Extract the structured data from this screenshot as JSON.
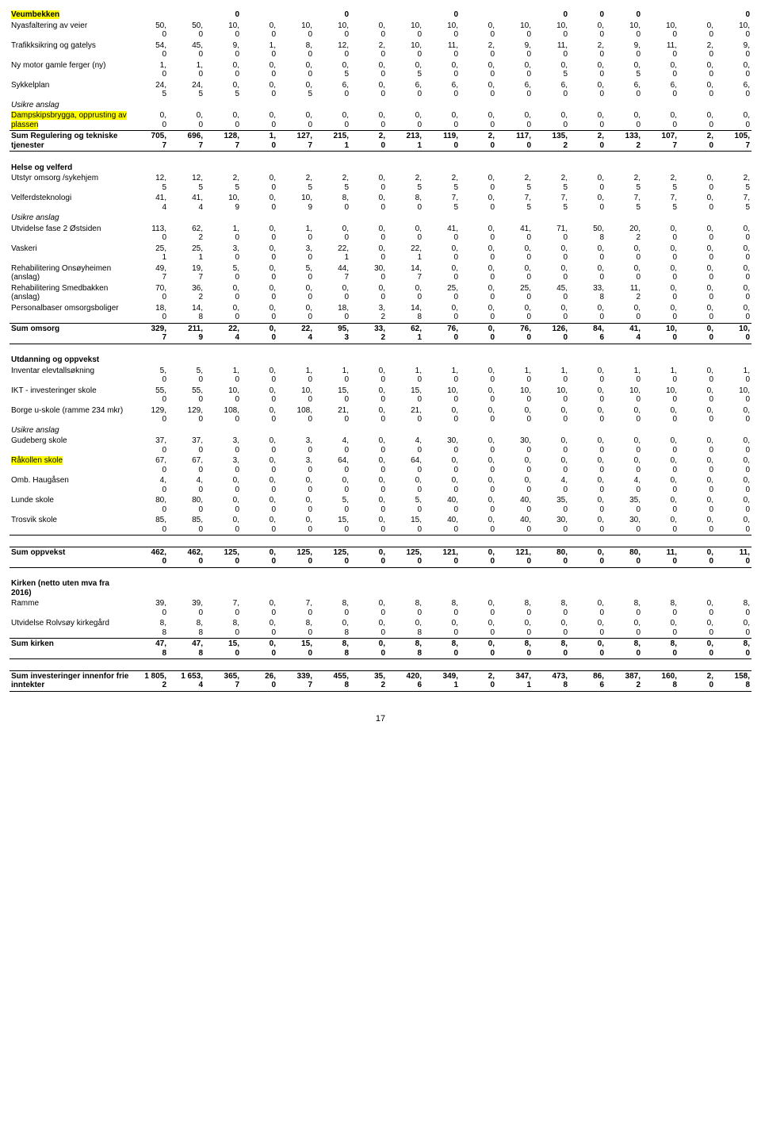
{
  "page_number": "17",
  "highlight_color": "#ffff00",
  "rows": [
    {
      "label": "Veumbekken",
      "bold": true,
      "highlight": "label",
      "c": [
        "",
        "",
        "0",
        "",
        "",
        "0",
        "",
        "",
        "0",
        "",
        "",
        "0",
        "0",
        "0",
        "",
        "",
        "0"
      ]
    },
    {
      "label": "Nyasfaltering av veier",
      "c": [
        "50,0",
        "50,0",
        "10,0",
        "0,0",
        "10,0",
        "10,0",
        "0,0",
        "10,0",
        "10,0",
        "0,0",
        "10,0",
        "10,0",
        "0,0",
        "10,0",
        "10,0",
        "0,0",
        "10,0"
      ]
    },
    {
      "label": "Trafikksikring og gatelys",
      "c": [
        "54,0",
        "45,0",
        "9,0",
        "1,0",
        "8,0",
        "12,0",
        "2,0",
        "10,0",
        "11,0",
        "2,0",
        "9,0",
        "11,0",
        "2,0",
        "9,0",
        "11,0",
        "2,0",
        "9,0"
      ]
    },
    {
      "label": "Ny motor gamle ferger (ny)",
      "c": [
        "1,0",
        "1,0",
        "0,0",
        "0,0",
        "0,0",
        "0,5",
        "0,0",
        "0,5",
        "0,0",
        "0,0",
        "0,0",
        "0,5",
        "0,0",
        "0,5",
        "0,0",
        "0,0",
        "0,0"
      ]
    },
    {
      "label": "Sykkelplan",
      "c": [
        "24,5",
        "24,5",
        "0,5",
        "0,0",
        "0,5",
        "6,0",
        "0,0",
        "6,0",
        "6,0",
        "0,0",
        "6,0",
        "6,0",
        "0,0",
        "6,0",
        "6,0",
        "0,0",
        "6,0"
      ]
    },
    {
      "label": "Usikre anslag",
      "italic": true,
      "c": [
        "",
        "",
        "",
        "",
        "",
        "",
        "",
        "",
        "",
        "",
        "",
        "",
        "",
        "",
        "",
        "",
        ""
      ]
    },
    {
      "label": "Dampskipsbrygga, opprusting av plassen",
      "highlight": "label",
      "sep": true,
      "c": [
        "0,0",
        "0,0",
        "0,0",
        "0,0",
        "0,0",
        "0,0",
        "0,0",
        "0,0",
        "0,0",
        "0,0",
        "0,0",
        "0,0",
        "0,0",
        "0,0",
        "0,0",
        "0,0",
        "0,0"
      ]
    },
    {
      "label": "Sum Regulering og tekniske tjenester",
      "bold": true,
      "sep": true,
      "c": [
        "705,7",
        "696,7",
        "128,7",
        "1,0",
        "127,7",
        "215,1",
        "2,0",
        "213,1",
        "119,0",
        "2,0",
        "117,0",
        "135,2",
        "2,0",
        "133,2",
        "107,7",
        "2,0",
        "105,7"
      ]
    },
    {
      "spacer": true
    },
    {
      "label": "Helse og velferd",
      "bold": true,
      "c": [
        "",
        "",
        "",
        "",
        "",
        "",
        "",
        "",
        "",
        "",
        "",
        "",
        "",
        "",
        "",
        "",
        ""
      ]
    },
    {
      "label": "Utstyr omsorg /sykehjem",
      "c": [
        "12,5",
        "12,5",
        "2,5",
        "0,0",
        "2,5",
        "2,5",
        "0,0",
        "2,5",
        "2,5",
        "0,0",
        "2,5",
        "2,5",
        "0,0",
        "2,5",
        "2,5",
        "0,0",
        "2,5"
      ]
    },
    {
      "label": "Velferdsteknologi",
      "c": [
        "41,4",
        "41,4",
        "10,9",
        "0,0",
        "10,9",
        "8,0",
        "0,0",
        "8,0",
        "7,5",
        "0,0",
        "7,5",
        "7,5",
        "0,0",
        "7,5",
        "7,5",
        "0,0",
        "7,5"
      ]
    },
    {
      "label": "Usikre anslag",
      "italic": true,
      "c": [
        "",
        "",
        "",
        "",
        "",
        "",
        "",
        "",
        "",
        "",
        "",
        "",
        "",
        "",
        "",
        "",
        ""
      ]
    },
    {
      "label": "Utvidelse fase 2 Østsiden",
      "c": [
        "113,0",
        "62,2",
        "1,0",
        "0,0",
        "1,0",
        "0,0",
        "0,0",
        "0,0",
        "41,0",
        "0,0",
        "41,0",
        "71,0",
        "50,8",
        "20,2",
        "0,0",
        "0,0",
        "0,0"
      ]
    },
    {
      "label": "Vaskeri",
      "c": [
        "25,1",
        "25,1",
        "3,0",
        "0,0",
        "3,0",
        "22,1",
        "0,0",
        "22,1",
        "0,0",
        "0,0",
        "0,0",
        "0,0",
        "0,0",
        "0,0",
        "0,0",
        "0,0",
        "0,0"
      ]
    },
    {
      "label": "Rehabilitering Onsøyheimen (anslag)",
      "c": [
        "49,7",
        "19,7",
        "5,0",
        "0,0",
        "5,0",
        "44,7",
        "30,0",
        "14,7",
        "0,0",
        "0,0",
        "0,0",
        "0,0",
        "0,0",
        "0,0",
        "0,0",
        "0,0",
        "0,0"
      ]
    },
    {
      "label": "Rehabilitering Smedbakken (anslag)",
      "c": [
        "70,0",
        "36,2",
        "0,0",
        "0,0",
        "0,0",
        "0,0",
        "0,0",
        "0,0",
        "25,0",
        "0,0",
        "25,0",
        "45,0",
        "33,8",
        "11,2",
        "0,0",
        "0,0",
        "0,0"
      ]
    },
    {
      "label": "Personalbaser omsorgsboliger",
      "sep": true,
      "c": [
        "18,0",
        "14,8",
        "0,0",
        "0,0",
        "0,0",
        "18,0",
        "3,2",
        "14,8",
        "0,0",
        "0,0",
        "0,0",
        "0,0",
        "0,0",
        "0,0",
        "0,0",
        "0,0",
        "0,0"
      ]
    },
    {
      "label": "Sum omsorg",
      "bold": true,
      "sep": true,
      "c": [
        "329,7",
        "211,9",
        "22,4",
        "0,0",
        "22,4",
        "95,3",
        "33,2",
        "62,1",
        "76,0",
        "0,0",
        "76,0",
        "126,0",
        "84,6",
        "41,4",
        "10,0",
        "0,0",
        "10,0"
      ]
    },
    {
      "spacer": true
    },
    {
      "label": "Utdanning og oppvekst",
      "bold": true,
      "c": [
        "",
        "",
        "",
        "",
        "",
        "",
        "",
        "",
        "",
        "",
        "",
        "",
        "",
        "",
        "",
        "",
        ""
      ]
    },
    {
      "label": "Inventar elevtallsøkning",
      "c": [
        "5,0",
        "5,0",
        "1,0",
        "0,0",
        "1,0",
        "1,0",
        "0,0",
        "1,0",
        "1,0",
        "0,0",
        "1,0",
        "1,0",
        "0,0",
        "1,0",
        "1,0",
        "0,0",
        "1,0"
      ]
    },
    {
      "label": "IKT - investeringer skole",
      "c": [
        "55,0",
        "55,0",
        "10,0",
        "0,0",
        "10,0",
        "15,0",
        "0,0",
        "15,0",
        "10,0",
        "0,0",
        "10,0",
        "10,0",
        "0,0",
        "10,0",
        "10,0",
        "0,0",
        "10,0"
      ]
    },
    {
      "label": "Borge u-skole (ramme 234 mkr)",
      "c": [
        "129,0",
        "129,0",
        "108,0",
        "0,0",
        "108,0",
        "21,0",
        "0,0",
        "21,0",
        "0,0",
        "0,0",
        "0,0",
        "0,0",
        "0,0",
        "0,0",
        "0,0",
        "0,0",
        "0,0"
      ]
    },
    {
      "label": "Usikre anslag",
      "italic": true,
      "c": [
        "",
        "",
        "",
        "",
        "",
        "",
        "",
        "",
        "",
        "",
        "",
        "",
        "",
        "",
        "",
        "",
        ""
      ]
    },
    {
      "label": "Gudeberg skole",
      "c": [
        "37,0",
        "37,0",
        "3,0",
        "0,0",
        "3,0",
        "4,0",
        "0,0",
        "4,0",
        "30,0",
        "0,0",
        "30,0",
        "0,0",
        "0,0",
        "0,0",
        "0,0",
        "0,0",
        "0,0"
      ]
    },
    {
      "label": "Råkollen skole",
      "highlight": "label",
      "c": [
        "67,0",
        "67,0",
        "3,0",
        "0,0",
        "3,0",
        "64,0",
        "0,0",
        "64,0",
        "0,0",
        "0,0",
        "0,0",
        "0,0",
        "0,0",
        "0,0",
        "0,0",
        "0,0",
        "0,0"
      ]
    },
    {
      "label": "Omb. Haugåsen",
      "c": [
        "4,0",
        "4,0",
        "0,0",
        "0,0",
        "0,0",
        "0,0",
        "0,0",
        "0,0",
        "0,0",
        "0,0",
        "0,0",
        "4,0",
        "0,0",
        "4,0",
        "0,0",
        "0,0",
        "0,0"
      ]
    },
    {
      "label": "Lunde skole",
      "c": [
        "80,0",
        "80,0",
        "0,0",
        "0,0",
        "0,0",
        "5,0",
        "0,0",
        "5,0",
        "40,0",
        "0,0",
        "40,0",
        "35,0",
        "0,0",
        "35,0",
        "0,0",
        "0,0",
        "0,0"
      ]
    },
    {
      "label": "Trosvik skole",
      "sep": true,
      "c": [
        "85,0",
        "85,0",
        "0,0",
        "0,0",
        "0,0",
        "15,0",
        "0,0",
        "15,0",
        "40,0",
        "0,0",
        "40,0",
        "30,0",
        "0,0",
        "30,0",
        "0,0",
        "0,0",
        "0,0"
      ]
    },
    {
      "spacer": true
    },
    {
      "label": "Sum oppvekst",
      "bold": true,
      "sepheavy": true,
      "septop": true,
      "c": [
        "462,0",
        "462,0",
        "125,0",
        "0,0",
        "125,0",
        "125,0",
        "0,0",
        "125,0",
        "121,0",
        "0,0",
        "121,0",
        "80,0",
        "0,0",
        "80,0",
        "11,0",
        "0,0",
        "11,0"
      ]
    },
    {
      "spacer": true
    },
    {
      "label": "Kirken  (netto uten mva fra 2016)",
      "bold": true,
      "c": [
        "",
        "",
        "",
        "",
        "",
        "",
        "",
        "",
        "",
        "",
        "",
        "",
        "",
        "",
        "",
        "",
        ""
      ]
    },
    {
      "label": "Ramme",
      "c": [
        "39,0",
        "39,0",
        "7,0",
        "0,0",
        "7,0",
        "8,0",
        "0,0",
        "8,0",
        "8,0",
        "0,0",
        "8,0",
        "8,0",
        "0,0",
        "8,0",
        "8,0",
        "0,0",
        "8,0"
      ]
    },
    {
      "label": "Utvidelse Rolvsøy kirkegård",
      "sep": true,
      "c": [
        "8,8",
        "8,8",
        "8,0",
        "0,0",
        "8,0",
        "0,8",
        "0,0",
        "0,8",
        "0,0",
        "0,0",
        "0,0",
        "0,0",
        "0,0",
        "0,0",
        "0,0",
        "0,0",
        "0,0"
      ]
    },
    {
      "label": "Sum kirken",
      "bold": true,
      "sepheavy": true,
      "c": [
        "47,8",
        "47,8",
        "15,0",
        "0,0",
        "15,0",
        "8,8",
        "0,0",
        "8,8",
        "8,0",
        "0,0",
        "8,0",
        "8,0",
        "0,0",
        "8,0",
        "8,0",
        "0,0",
        "8,0"
      ]
    },
    {
      "spacer": true
    },
    {
      "label": "Sum investeringer innenfor frie inntekter",
      "bold": true,
      "septop": true,
      "sepheavy": true,
      "c": [
        "1 805,2",
        "1 653,4",
        "365,7",
        "26,0",
        "339,7",
        "455,8",
        "35,2",
        "420,6",
        "349,1",
        "2,0",
        "347,1",
        "473,8",
        "86,6",
        "387,2",
        "160,8",
        "2,0",
        "158,8"
      ]
    }
  ]
}
